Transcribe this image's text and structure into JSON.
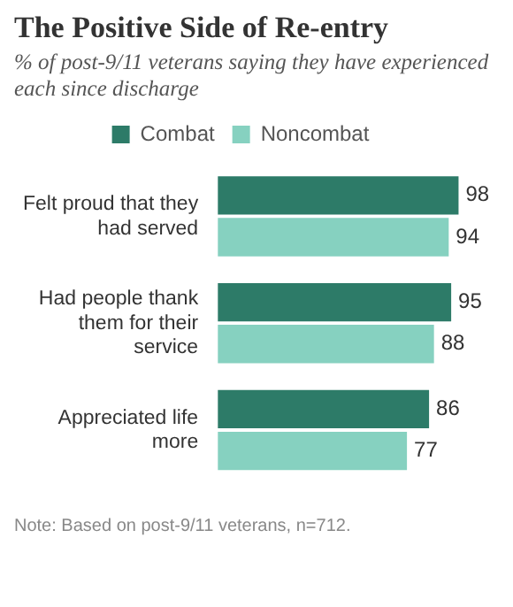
{
  "chart_data": {
    "type": "bar",
    "orientation": "horizontal",
    "title": "The Positive Side of Re-entry",
    "subtitle": "% of post-9/11 veterans saying they have experienced each since discharge",
    "categories": [
      "Felt proud that they had served",
      "Had people thank them for their service",
      "Appreciated life more"
    ],
    "series": [
      {
        "name": "Combat",
        "color": "#2d7b68",
        "values": [
          98,
          95,
          86
        ]
      },
      {
        "name": "Noncombat",
        "color": "#86d1c0",
        "values": [
          94,
          88,
          77
        ]
      }
    ],
    "data_labels": true,
    "legend": "top",
    "annotations": [
      "Note: Based on post-9/11 veterans, n=712."
    ]
  }
}
